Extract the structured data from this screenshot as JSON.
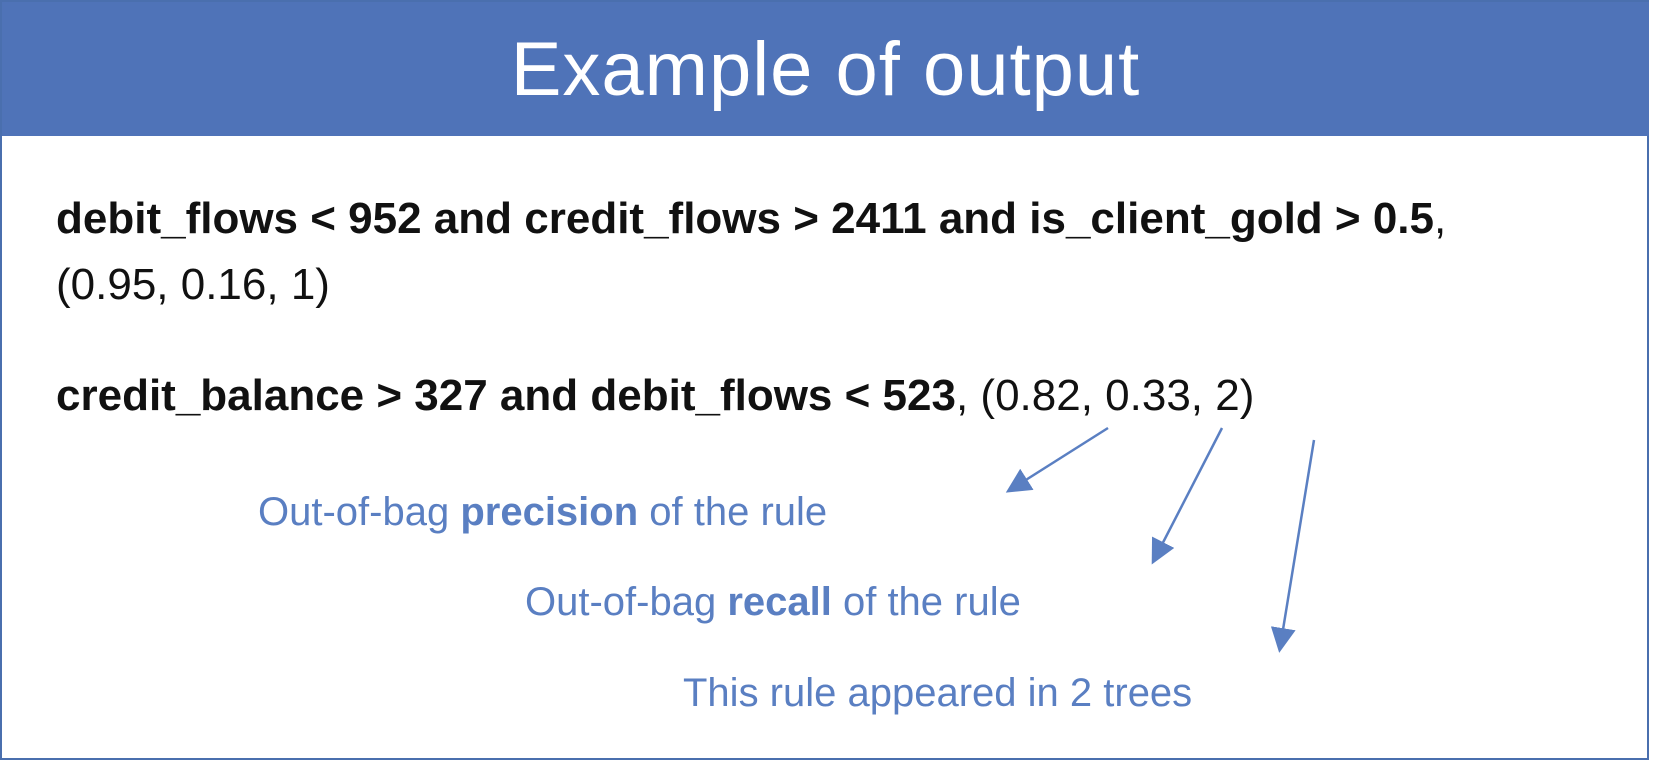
{
  "title": "Example of output",
  "rule1": {
    "condition": "debit_flows < 952 and credit_flows >  2411 and is_client_gold > 0.5",
    "separator": ",",
    "stats": "(0.95, 0.16, 1)"
  },
  "rule2": {
    "condition": "credit_balance > 327 and debit_flows < 523",
    "stats": ", (0.82, 0.33, 2)"
  },
  "annotations": {
    "precision": {
      "prefix": "Out-of-bag ",
      "bold": "precision",
      "suffix": " of the rule"
    },
    "recall": {
      "prefix": "Out-of-bag ",
      "bold": "recall",
      "suffix": " of the rule"
    },
    "trees": {
      "text": "This rule appeared in 2 trees"
    }
  },
  "colors": {
    "header_bg": "#4f73b8",
    "annotation": "#5a7fc2",
    "arrow": "#5a7fc2"
  }
}
